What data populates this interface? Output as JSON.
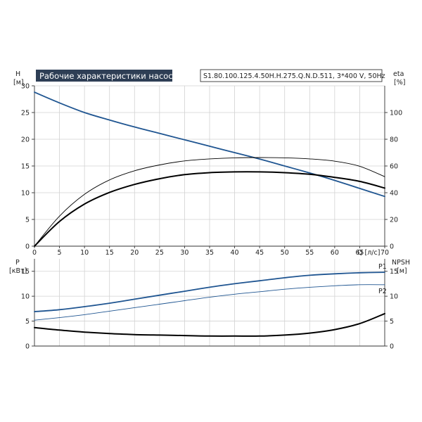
{
  "header": {
    "title": "Рабочие характеристики насоса",
    "info": "S1.80.100.125.4.50H.H.275.Q.N.D.511, 3*400 V, 50Hz"
  },
  "colors": {
    "title_bg": "#2e3e55",
    "blue": "#1f5591",
    "black": "#000000",
    "grid": "#d2d2d2"
  },
  "chart_data": [
    {
      "type": "line",
      "title": "Рабочие характеристики насоса",
      "xlabel": "Q [л/с]",
      "x_ticks": [
        "0",
        "5",
        "10",
        "15",
        "20",
        "25",
        "30",
        "35",
        "40",
        "45",
        "50",
        "55",
        "60",
        "65",
        "70"
      ],
      "xlim": [
        0,
        70
      ],
      "ylabel_left": {
        "symbol": "H",
        "unit": "[м]"
      },
      "ylim_left": [
        0,
        30
      ],
      "y_ticks_left": [
        "0",
        "5",
        "10",
        "15",
        "20",
        "25",
        "30"
      ],
      "ylabel_right": {
        "symbol": "eta",
        "unit": "[%]"
      },
      "ylim_right": [
        0,
        120
      ],
      "y_ticks_right": [
        "0",
        "20",
        "40",
        "60",
        "80",
        "100"
      ],
      "grid": true,
      "series": [
        {
          "axis": "left",
          "color": "#1f5591",
          "width": 1.8,
          "x": [
            0,
            5,
            10,
            15,
            20,
            25,
            30,
            35,
            40,
            45,
            50,
            55,
            60,
            65,
            70
          ],
          "y": [
            28.8,
            26.8,
            25.0,
            23.6,
            22.3,
            21.1,
            19.9,
            18.7,
            17.5,
            16.3,
            15.0,
            13.7,
            12.3,
            10.8,
            9.3
          ]
        },
        {
          "axis": "right",
          "color": "#000000",
          "width": 2.0,
          "x": [
            0,
            5,
            10,
            15,
            20,
            25,
            30,
            35,
            40,
            45,
            50,
            55,
            60,
            65,
            70
          ],
          "y": [
            0,
            18.5,
            31.5,
            40.2,
            46.2,
            50.5,
            53.5,
            55.0,
            55.6,
            55.6,
            55.0,
            53.8,
            51.5,
            48.5,
            43.5
          ]
        },
        {
          "axis": "right",
          "color": "#000000",
          "width": 0.9,
          "x": [
            0,
            5,
            10,
            15,
            20,
            25,
            30,
            35,
            40,
            45,
            50,
            55,
            60,
            65,
            70
          ],
          "y": [
            0,
            22.5,
            38.8,
            49.6,
            56.4,
            60.8,
            63.8,
            65.3,
            66.1,
            66.3,
            66.1,
            65.3,
            63.6,
            59.8,
            52.0
          ]
        }
      ]
    },
    {
      "type": "line",
      "xlim": [
        0,
        70
      ],
      "ylabel_left": {
        "symbol": "P",
        "unit": "[кВт]"
      },
      "ylim_left": [
        0,
        17.5
      ],
      "y_ticks_left": [
        "0",
        "5",
        "10",
        "15"
      ],
      "ylabel_right": {
        "symbol": "NPSH",
        "unit": "[м]"
      },
      "ylim_right": [
        0,
        17.5
      ],
      "y_ticks_right": [
        "0",
        "5",
        "10",
        "15"
      ],
      "grid": true,
      "series": [
        {
          "name": "P1",
          "axis": "left",
          "color": "#1f5591",
          "width": 1.8,
          "x": [
            0,
            5,
            10,
            15,
            20,
            25,
            30,
            35,
            40,
            45,
            50,
            55,
            60,
            65,
            70
          ],
          "y": [
            6.9,
            7.3,
            7.9,
            8.6,
            9.4,
            10.2,
            11.0,
            11.8,
            12.5,
            13.1,
            13.7,
            14.2,
            14.5,
            14.7,
            14.8
          ]
        },
        {
          "name": "P2",
          "axis": "left",
          "color": "#1f5591",
          "width": 0.9,
          "x": [
            0,
            5,
            10,
            15,
            20,
            25,
            30,
            35,
            40,
            45,
            50,
            55,
            60,
            65,
            70
          ],
          "y": [
            5.2,
            5.7,
            6.3,
            7.0,
            7.7,
            8.4,
            9.1,
            9.8,
            10.4,
            10.9,
            11.4,
            11.8,
            12.1,
            12.3,
            12.3
          ]
        },
        {
          "axis": "right",
          "color": "#000000",
          "width": 2.0,
          "x": [
            0,
            5,
            10,
            15,
            20,
            25,
            30,
            35,
            40,
            45,
            50,
            55,
            60,
            65,
            70
          ],
          "y": [
            3.7,
            3.2,
            2.8,
            2.5,
            2.3,
            2.2,
            2.1,
            2.0,
            2.0,
            2.0,
            2.2,
            2.6,
            3.3,
            4.5,
            6.5
          ]
        }
      ]
    }
  ]
}
